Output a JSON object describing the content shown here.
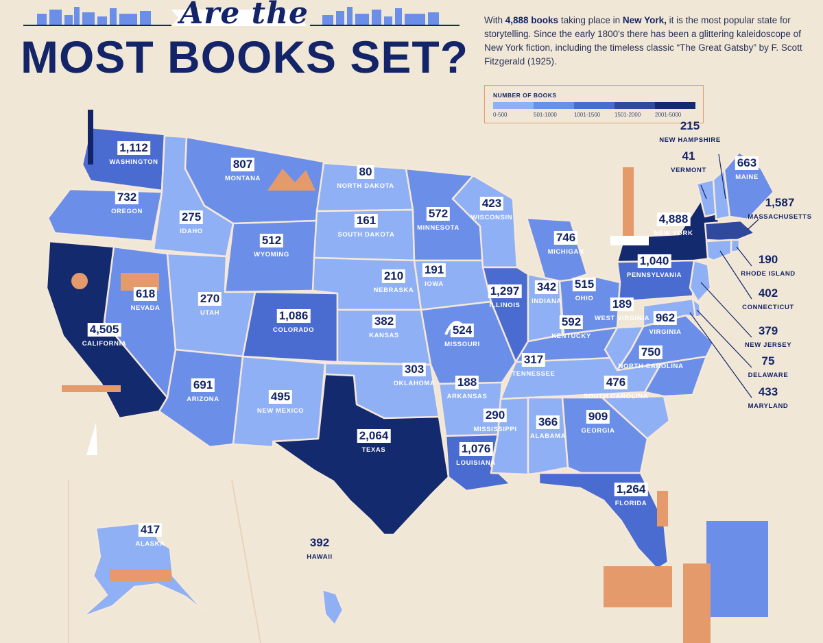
{
  "title": {
    "script": "Are the",
    "main": "MOST BOOKS SET?"
  },
  "intro": {
    "p1": "With ",
    "b1": "4,888 books",
    "p2": " taking place in ",
    "b2": "New York,",
    "p3": " it is the most popular state for storytelling. Since the early 1800's there has been a glittering kaleidoscope of New York fiction, including the timeless classic “The Great Gatsby” by F. Scott Fitzgerald (1925)."
  },
  "legend": {
    "title": "NUMBER OF BOOKS",
    "bins": [
      {
        "label": "0-500",
        "color": "#8fb0f4"
      },
      {
        "label": "501-1000",
        "color": "#6b8fe8"
      },
      {
        "label": "1001-1500",
        "color": "#4a6cd0"
      },
      {
        "label": "1501-2000",
        "color": "#2f4a9c"
      },
      {
        "label": "2001-5000",
        "color": "#132a6e"
      }
    ]
  },
  "colors": {
    "background": "#f1e7d6",
    "navy": "#132468",
    "accent": "#e59a6c",
    "border": "#f6e8d8"
  },
  "states": [
    {
      "id": "washington",
      "name": "WASHINGTON",
      "value": "1,112",
      "bin": 2
    },
    {
      "id": "oregon",
      "name": "OREGON",
      "value": "732",
      "bin": 1
    },
    {
      "id": "california",
      "name": "CALIFORNIA",
      "value": "4,505",
      "bin": 4
    },
    {
      "id": "nevada",
      "name": "NEVADA",
      "value": "618",
      "bin": 1
    },
    {
      "id": "idaho",
      "name": "IDAHO",
      "value": "275",
      "bin": 0
    },
    {
      "id": "montana",
      "name": "MONTANA",
      "value": "807",
      "bin": 1
    },
    {
      "id": "wyoming",
      "name": "WYOMING",
      "value": "512",
      "bin": 1
    },
    {
      "id": "utah",
      "name": "UTAH",
      "value": "270",
      "bin": 0
    },
    {
      "id": "arizona",
      "name": "ARIZONA",
      "value": "691",
      "bin": 1
    },
    {
      "id": "colorado",
      "name": "COLORADO",
      "value": "1,086",
      "bin": 2
    },
    {
      "id": "new-mexico",
      "name": "NEW MEXICO",
      "value": "495",
      "bin": 0
    },
    {
      "id": "north-dakota",
      "name": "NORTH DAKOTA",
      "value": "80",
      "bin": 0
    },
    {
      "id": "south-dakota",
      "name": "SOUTH DAKOTA",
      "value": "161",
      "bin": 0
    },
    {
      "id": "nebraska",
      "name": "NEBRASKA",
      "value": "210",
      "bin": 0
    },
    {
      "id": "kansas",
      "name": "KANSAS",
      "value": "382",
      "bin": 0
    },
    {
      "id": "oklahoma",
      "name": "OKLAHOMA",
      "value": "303",
      "bin": 0
    },
    {
      "id": "texas",
      "name": "TEXAS",
      "value": "2,064",
      "bin": 4
    },
    {
      "id": "minnesota",
      "name": "MINNESOTA",
      "value": "572",
      "bin": 1
    },
    {
      "id": "iowa",
      "name": "IOWA",
      "value": "191",
      "bin": 0
    },
    {
      "id": "missouri",
      "name": "MISSOURI",
      "value": "524",
      "bin": 1
    },
    {
      "id": "arkansas",
      "name": "ARKANSAS",
      "value": "188",
      "bin": 0
    },
    {
      "id": "louisiana",
      "name": "LOUISIANA",
      "value": "1,076",
      "bin": 2
    },
    {
      "id": "wisconsin",
      "name": "WISCONSIN",
      "value": "423",
      "bin": 0
    },
    {
      "id": "illinois",
      "name": "ILLINOIS",
      "value": "1,297",
      "bin": 2
    },
    {
      "id": "michigan",
      "name": "MICHIGAN",
      "value": "746",
      "bin": 1
    },
    {
      "id": "indiana",
      "name": "INDIANA",
      "value": "342",
      "bin": 0
    },
    {
      "id": "ohio",
      "name": "OHIO",
      "value": "515",
      "bin": 1
    },
    {
      "id": "kentucky",
      "name": "KENTUCKY",
      "value": "592",
      "bin": 1
    },
    {
      "id": "tennessee",
      "name": "TENNESSEE",
      "value": "317",
      "bin": 0
    },
    {
      "id": "mississippi",
      "name": "MISSISSIPPI",
      "value": "290",
      "bin": 0
    },
    {
      "id": "alabama",
      "name": "ALABAMA",
      "value": "366",
      "bin": 0
    },
    {
      "id": "georgia",
      "name": "GEORGIA",
      "value": "909",
      "bin": 1
    },
    {
      "id": "florida",
      "name": "FLORIDA",
      "value": "1,264",
      "bin": 2
    },
    {
      "id": "south-carolina",
      "name": "SOUTH CAROLINA",
      "value": "476",
      "bin": 0
    },
    {
      "id": "north-carolina",
      "name": "NORTH CAROLINA",
      "value": "750",
      "bin": 1
    },
    {
      "id": "virginia",
      "name": "VIRGINIA",
      "value": "962",
      "bin": 1
    },
    {
      "id": "west-virginia",
      "name": "WEST VIRGINIA",
      "value": "189",
      "bin": 0
    },
    {
      "id": "pennsylvania",
      "name": "PENNSYLVANIA",
      "value": "1,040",
      "bin": 2
    },
    {
      "id": "new-york",
      "name": "NEW YORK",
      "value": "4,888",
      "bin": 4
    },
    {
      "id": "vermont",
      "name": "VERMONT",
      "value": "41",
      "bin": 0
    },
    {
      "id": "new-hampshire",
      "name": "NEW HAMPSHIRE",
      "value": "215",
      "bin": 0
    },
    {
      "id": "maine",
      "name": "MAINE",
      "value": "663",
      "bin": 1
    },
    {
      "id": "massachusetts",
      "name": "MASSACHUSETTS",
      "value": "1,587",
      "bin": 3
    },
    {
      "id": "rhode-island",
      "name": "RHODE ISLAND",
      "value": "190",
      "bin": 0
    },
    {
      "id": "connecticut",
      "name": "CONNECTICUT",
      "value": "402",
      "bin": 0
    },
    {
      "id": "new-jersey",
      "name": "NEW JERSEY",
      "value": "379",
      "bin": 0
    },
    {
      "id": "delaware",
      "name": "DELAWARE",
      "value": "75",
      "bin": 0
    },
    {
      "id": "maryland",
      "name": "MARYLAND",
      "value": "433",
      "bin": 0
    },
    {
      "id": "alaska",
      "name": "ALASKA",
      "value": "417",
      "bin": 0
    },
    {
      "id": "hawaii",
      "name": "HAWAII",
      "value": "392",
      "bin": 0
    }
  ]
}
